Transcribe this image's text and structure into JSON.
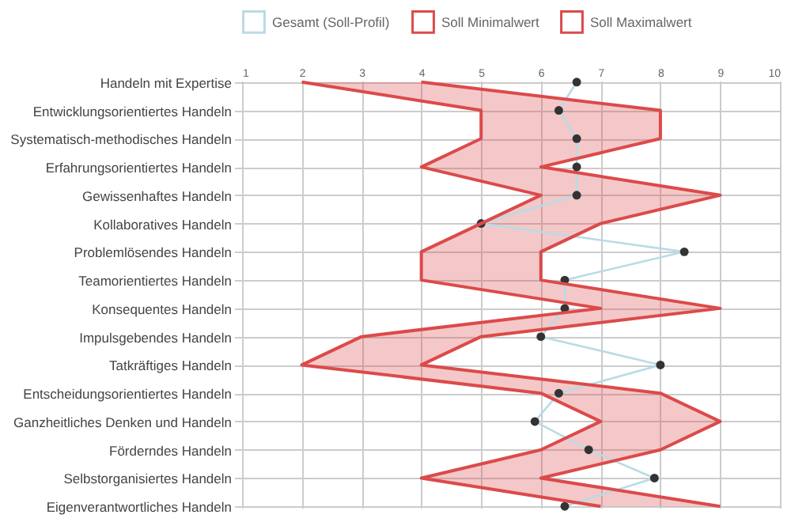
{
  "chart_data": {
    "type": "line",
    "orientation": "horizontal",
    "categories": [
      "Handeln mit Expertise",
      "Entwicklungsorientiertes Handeln",
      "Systematisch-methodisches Handeln",
      "Erfahrungsorientiertes Handeln",
      "Gewissenhaftes Handeln",
      "Kollaboratives Handeln",
      "Problemlösendes Handeln",
      "Teamorientiertes Handeln",
      "Konsequentes Handeln",
      "Impulsgebendes Handeln",
      "Tatkräftiges Handeln",
      "Entscheidungsorientiertes Handeln",
      "Ganzheitliches Denken und Handeln",
      "Förderndes Handeln",
      "Selbstorganisiertes Handeln",
      "Eigenverantwortliches Handeln"
    ],
    "series": [
      {
        "name": "Gesamt (Soll-Profil)",
        "type": "line",
        "color": "#b9dbe6",
        "marker": "circle",
        "values": [
          6.6,
          6.3,
          6.6,
          6.6,
          6.6,
          5,
          8.4,
          6.4,
          6.4,
          6,
          8,
          6.3,
          5.9,
          6.8,
          7.9,
          6.4
        ]
      },
      {
        "name": "Soll Minimalwert",
        "type": "line",
        "color": "#dc4a4a",
        "values": [
          2,
          5,
          5,
          4,
          6,
          5,
          4,
          4,
          7,
          3,
          2,
          6,
          7,
          6,
          4,
          7
        ]
      },
      {
        "name": "Soll Maximalwert",
        "type": "area",
        "color": "#dc4a4a",
        "values": [
          4,
          8,
          8,
          6,
          9,
          7,
          6,
          6,
          9,
          5,
          4,
          8,
          9,
          8,
          6,
          9
        ]
      }
    ],
    "xlim": [
      1,
      10
    ],
    "xticks": [
      1,
      2,
      3,
      4,
      5,
      6,
      7,
      8,
      9,
      10
    ],
    "grid": true,
    "legend": "top"
  }
}
